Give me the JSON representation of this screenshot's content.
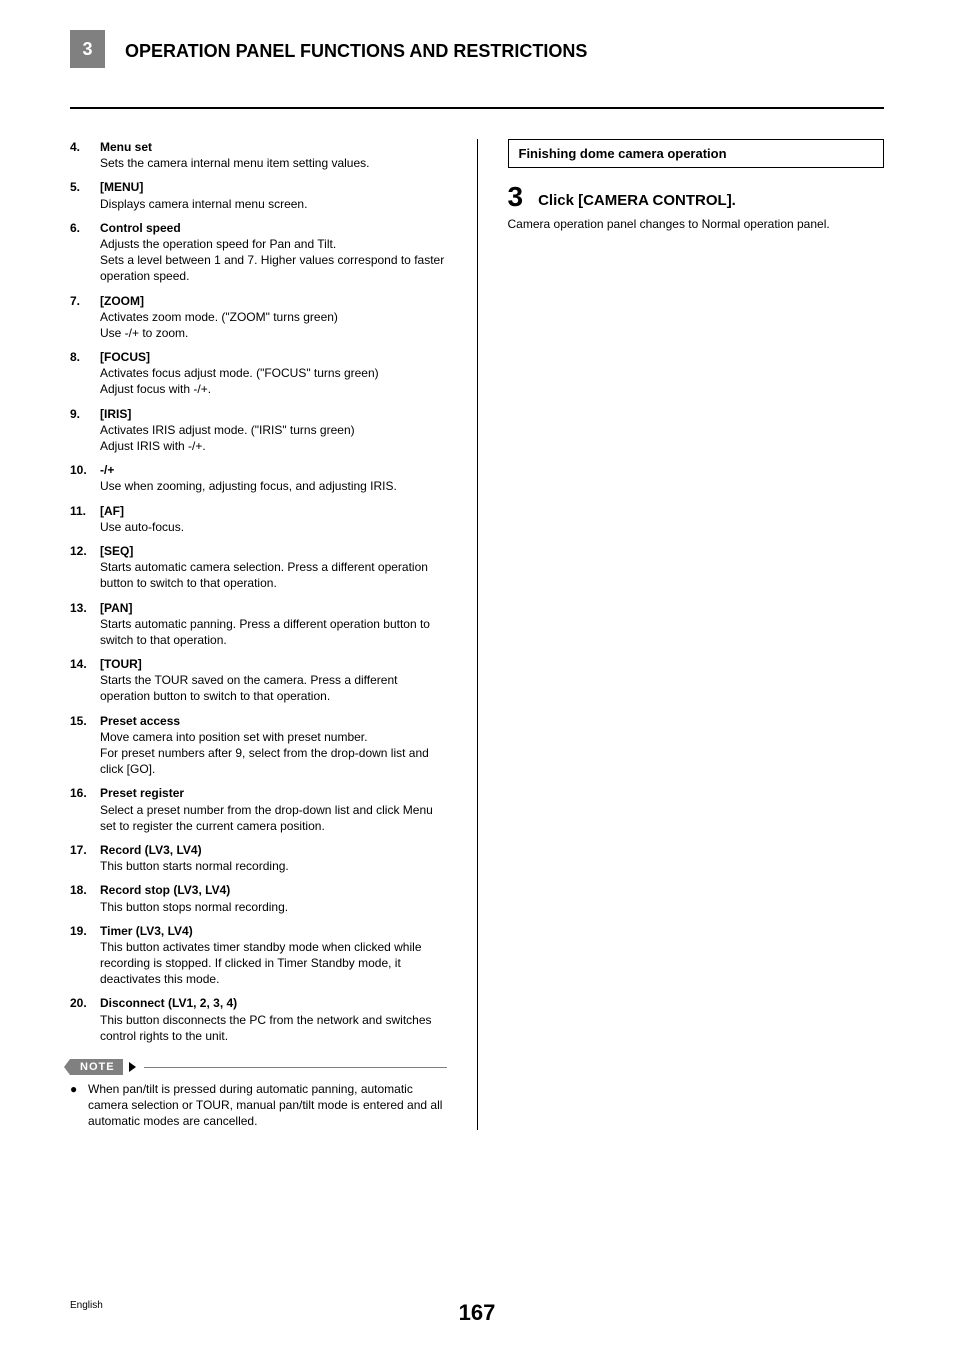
{
  "header": {
    "chapter": "3",
    "title": "OPERATION PANEL FUNCTIONS AND RESTRICTIONS"
  },
  "leftColumn": {
    "items": [
      {
        "num": "4.",
        "title": "Menu set",
        "desc": "Sets the camera internal menu item setting values."
      },
      {
        "num": "5.",
        "title": "[MENU]",
        "desc": "Displays camera internal menu screen."
      },
      {
        "num": "6.",
        "title": "Control speed",
        "desc": "Adjusts the operation speed for Pan and Tilt.\nSets a level between 1 and 7. Higher values correspond to faster operation speed."
      },
      {
        "num": "7.",
        "title": "[ZOOM]",
        "desc": "Activates zoom mode. (\"ZOOM\" turns green)\nUse -/+ to zoom."
      },
      {
        "num": "8.",
        "title": "[FOCUS]",
        "desc": "Activates focus adjust mode. (\"FOCUS\" turns green)\nAdjust focus with -/+."
      },
      {
        "num": "9.",
        "title": "[IRIS]",
        "desc": "Activates IRIS adjust mode. (\"IRIS\" turns green)\nAdjust IRIS with -/+."
      },
      {
        "num": "10.",
        "title": "-/+",
        "desc": "Use when zooming, adjusting focus, and adjusting IRIS."
      },
      {
        "num": "11.",
        "title": "[AF]",
        "desc": "Use auto-focus."
      },
      {
        "num": "12.",
        "title": "[SEQ]",
        "desc": "Starts automatic camera selection. Press a different operation button to switch to that operation."
      },
      {
        "num": "13.",
        "title": "[PAN]",
        "desc": "Starts automatic panning. Press a different operation button to switch to that operation."
      },
      {
        "num": "14.",
        "title": "[TOUR]",
        "desc": "Starts the TOUR saved on the camera. Press a different operation button to switch to that operation."
      },
      {
        "num": "15.",
        "title": "Preset access",
        "desc": "Move camera into position set with preset number.\nFor preset numbers after 9, select from the drop-down list and click [GO]."
      },
      {
        "num": "16.",
        "title": "Preset register",
        "desc": "Select a preset number from the drop-down list and click Menu set to register the current camera position."
      },
      {
        "num": "17.",
        "title": "Record (LV3, LV4)",
        "desc": "This button starts normal recording."
      },
      {
        "num": "18.",
        "title": "Record stop (LV3, LV4)",
        "desc": "This button stops normal recording."
      },
      {
        "num": "19.",
        "title": "Timer (LV3, LV4)",
        "desc": "This button activates timer standby mode when clicked while recording is stopped. If clicked in Timer Standby mode, it deactivates this mode."
      },
      {
        "num": "20.",
        "title": "Disconnect (LV1, 2, 3, 4)",
        "desc": "This button disconnects the PC from the network and switches control rights to the unit."
      }
    ],
    "note": {
      "label": "NOTE",
      "text": "When pan/tilt is pressed during automatic panning, automatic camera selection or TOUR, manual pan/tilt mode is entered and all automatic modes are cancelled."
    }
  },
  "rightColumn": {
    "boxTitle": "Finishing dome camera operation",
    "stepNum": "3",
    "stepTitle": "Click [CAMERA CONTROL].",
    "stepDesc": "Camera operation panel changes to Normal operation panel."
  },
  "footer": {
    "lang": "English",
    "page": "167"
  }
}
